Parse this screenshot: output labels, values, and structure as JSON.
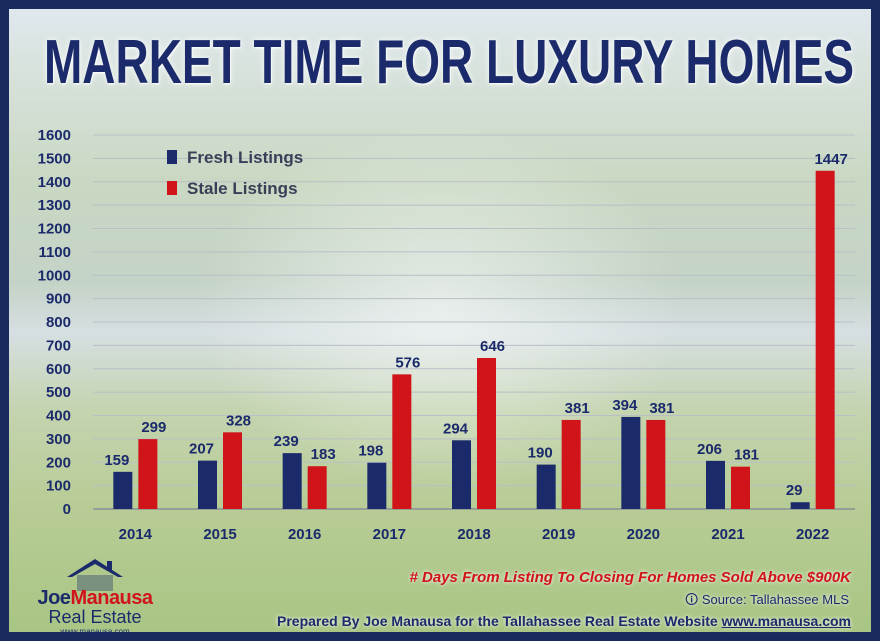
{
  "chart_data": {
    "type": "bar",
    "title": "MARKET TIME FOR LUXURY HOMES",
    "categories": [
      "2014",
      "2015",
      "2016",
      "2017",
      "2018",
      "2019",
      "2020",
      "2021",
      "2022"
    ],
    "series": [
      {
        "name": "Fresh Listings",
        "color": "#1b2a6b",
        "values": [
          159,
          207,
          239,
          198,
          294,
          190,
          394,
          206,
          29
        ]
      },
      {
        "name": "Stale Listings",
        "color": "#d0141a",
        "values": [
          299,
          328,
          183,
          576,
          646,
          381,
          381,
          181,
          1447
        ]
      }
    ],
    "yticks": [
      0,
      100,
      200,
      300,
      400,
      500,
      600,
      700,
      800,
      900,
      1000,
      1100,
      1200,
      1300,
      1400,
      1500,
      1600
    ],
    "ylim": [
      0,
      1600
    ],
    "grid": true,
    "legend_position": "top-left",
    "xlabel": "",
    "ylabel": ""
  },
  "caption": "# Days From Listing To Closing For Homes Sold Above $900K",
  "source": "Source: Tallahassee MLS",
  "prepared_text": "Prepared By Joe Manausa for the Tallahassee Real Estate Website",
  "prepared_url": "www.manausa.com",
  "logo": {
    "name_first": "Joe",
    "name_last": "Manausa",
    "subtitle": "Real Estate",
    "url": "www.manausa.com"
  }
}
